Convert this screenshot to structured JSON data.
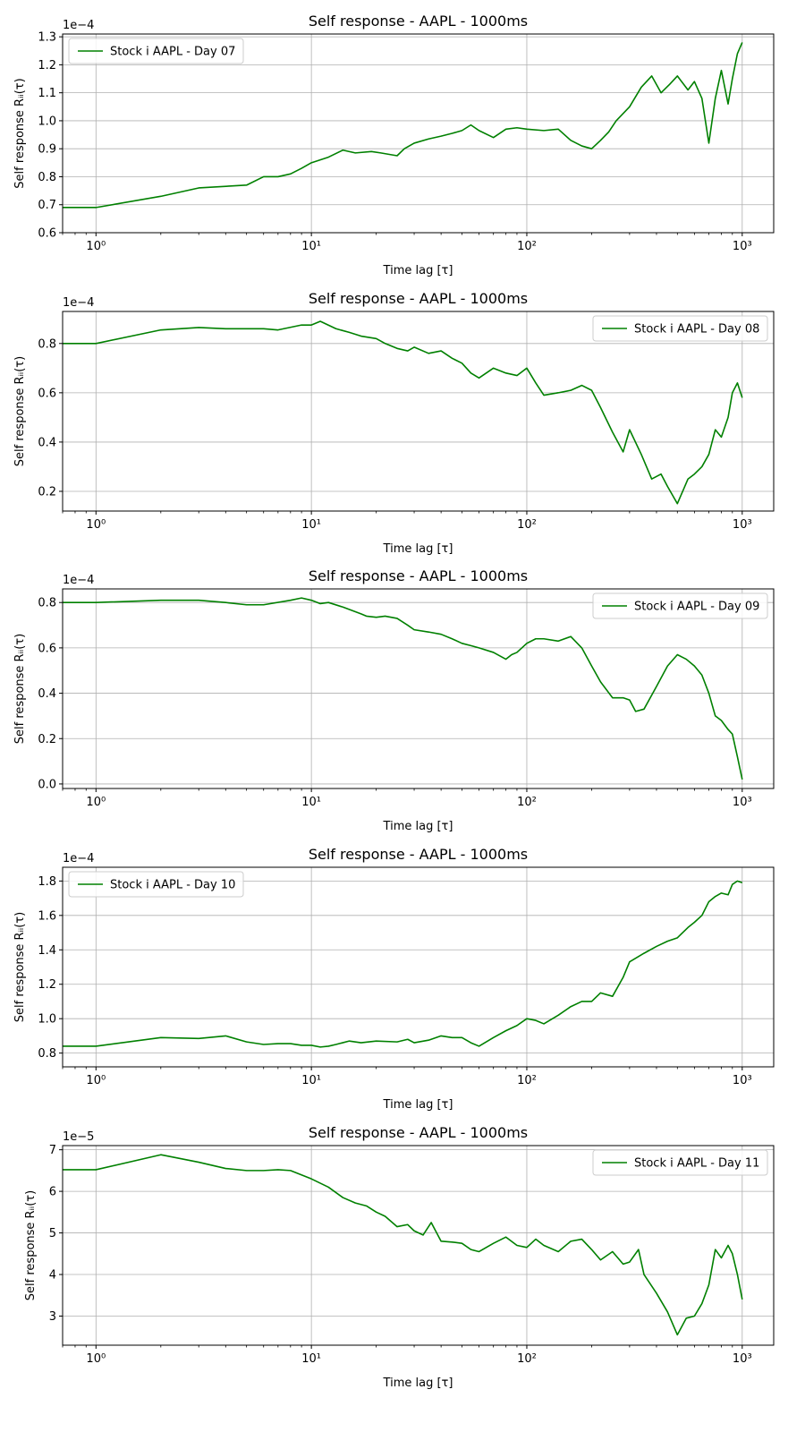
{
  "colors": {
    "series": "#008000",
    "grid": "#b0b0b0",
    "axes": "#000000"
  },
  "chart_data": [
    {
      "type": "line",
      "title": "Self response - AAPL - 1000ms",
      "xlabel": "Time lag [τ]",
      "ylabel": "Self response Rᵢᵢ(τ)",
      "xscale": "log",
      "xlim": [
        0.7,
        1400
      ],
      "xticks": [
        1,
        10,
        100,
        1000
      ],
      "xtick_labels": [
        "10⁰",
        "10¹",
        "10²",
        "10³"
      ],
      "offset_text": "1e−4",
      "ylim": [
        0.6,
        1.31
      ],
      "yticks": [
        0.6,
        0.7,
        0.8,
        0.9,
        1.0,
        1.1,
        1.2,
        1.3
      ],
      "ytick_labels": [
        "0.6",
        "0.7",
        "0.8",
        "0.9",
        "1.0",
        "1.1",
        "1.2",
        "1.3"
      ],
      "grid": true,
      "legend_position": "upper-left",
      "series": [
        {
          "name": "Stock i AAPL - Day 07",
          "x": [
            0.7,
            1,
            2,
            3,
            5,
            6,
            7,
            8,
            9,
            10,
            12,
            14,
            16,
            19,
            21,
            25,
            27,
            30,
            35,
            40,
            45,
            50,
            55,
            60,
            70,
            80,
            90,
            100,
            120,
            140,
            160,
            180,
            200,
            220,
            240,
            260,
            300,
            340,
            380,
            420,
            460,
            500,
            560,
            600,
            650,
            700,
            750,
            800,
            860,
            900,
            950,
            1000
          ],
          "y": [
            0.69,
            0.69,
            0.73,
            0.76,
            0.77,
            0.8,
            0.8,
            0.81,
            0.83,
            0.85,
            0.87,
            0.895,
            0.885,
            0.89,
            0.885,
            0.875,
            0.9,
            0.92,
            0.935,
            0.945,
            0.955,
            0.965,
            0.985,
            0.965,
            0.94,
            0.97,
            0.975,
            0.97,
            0.965,
            0.97,
            0.93,
            0.91,
            0.9,
            0.93,
            0.96,
            1.0,
            1.05,
            1.12,
            1.16,
            1.1,
            1.13,
            1.16,
            1.11,
            1.14,
            1.08,
            0.92,
            1.08,
            1.18,
            1.06,
            1.15,
            1.24,
            1.28
          ]
        }
      ]
    },
    {
      "type": "line",
      "title": "Self response - AAPL - 1000ms",
      "xlabel": "Time lag [τ]",
      "ylabel": "Self response Rᵢᵢ(τ)",
      "xscale": "log",
      "xlim": [
        0.7,
        1400
      ],
      "xticks": [
        1,
        10,
        100,
        1000
      ],
      "xtick_labels": [
        "10⁰",
        "10¹",
        "10²",
        "10³"
      ],
      "offset_text": "1e−4",
      "ylim": [
        0.12,
        0.93
      ],
      "yticks": [
        0.2,
        0.4,
        0.6,
        0.8
      ],
      "ytick_labels": [
        "0.2",
        "0.4",
        "0.6",
        "0.8"
      ],
      "grid": true,
      "legend_position": "upper-right",
      "series": [
        {
          "name": "Stock i AAPL - Day 08",
          "x": [
            0.7,
            1,
            2,
            3,
            4,
            6,
            7,
            9,
            10,
            11,
            13,
            15,
            17,
            20,
            22,
            25,
            28,
            30,
            35,
            40,
            45,
            50,
            55,
            60,
            70,
            80,
            90,
            100,
            110,
            120,
            140,
            160,
            180,
            200,
            220,
            250,
            280,
            300,
            340,
            380,
            420,
            450,
            500,
            560,
            600,
            650,
            700,
            750,
            800,
            860,
            900,
            950,
            1000
          ],
          "y": [
            0.8,
            0.8,
            0.855,
            0.865,
            0.86,
            0.86,
            0.855,
            0.875,
            0.875,
            0.89,
            0.86,
            0.845,
            0.83,
            0.82,
            0.8,
            0.78,
            0.77,
            0.785,
            0.76,
            0.77,
            0.74,
            0.72,
            0.68,
            0.66,
            0.7,
            0.68,
            0.67,
            0.7,
            0.64,
            0.59,
            0.6,
            0.61,
            0.63,
            0.61,
            0.54,
            0.44,
            0.36,
            0.45,
            0.35,
            0.25,
            0.27,
            0.22,
            0.15,
            0.25,
            0.27,
            0.3,
            0.35,
            0.45,
            0.42,
            0.5,
            0.6,
            0.64,
            0.58
          ]
        }
      ]
    },
    {
      "type": "line",
      "title": "Self response - AAPL - 1000ms",
      "xlabel": "Time lag [τ]",
      "ylabel": "Self response Rᵢᵢ(τ)",
      "xscale": "log",
      "xlim": [
        0.7,
        1400
      ],
      "xticks": [
        1,
        10,
        100,
        1000
      ],
      "xtick_labels": [
        "10⁰",
        "10¹",
        "10²",
        "10³"
      ],
      "offset_text": "1e−4",
      "ylim": [
        -0.02,
        0.86
      ],
      "yticks": [
        0.0,
        0.2,
        0.4,
        0.6,
        0.8
      ],
      "ytick_labels": [
        "0.0",
        "0.2",
        "0.4",
        "0.6",
        "0.8"
      ],
      "grid": true,
      "legend_position": "upper-right",
      "series": [
        {
          "name": "Stock i AAPL - Day 09",
          "x": [
            0.7,
            1,
            2,
            3,
            4,
            5,
            6,
            8,
            9,
            10,
            11,
            12,
            14,
            17,
            18,
            20,
            22,
            25,
            28,
            30,
            35,
            40,
            45,
            50,
            55,
            60,
            70,
            80,
            85,
            90,
            100,
            110,
            120,
            140,
            160,
            180,
            200,
            220,
            250,
            280,
            300,
            320,
            350,
            400,
            450,
            500,
            550,
            600,
            650,
            700,
            750,
            800,
            860,
            900,
            950,
            1000
          ],
          "y": [
            0.8,
            0.8,
            0.81,
            0.81,
            0.8,
            0.79,
            0.79,
            0.81,
            0.82,
            0.81,
            0.795,
            0.8,
            0.78,
            0.75,
            0.74,
            0.735,
            0.74,
            0.73,
            0.7,
            0.68,
            0.67,
            0.66,
            0.64,
            0.62,
            0.61,
            0.6,
            0.58,
            0.55,
            0.57,
            0.58,
            0.62,
            0.64,
            0.64,
            0.63,
            0.65,
            0.6,
            0.52,
            0.45,
            0.38,
            0.38,
            0.37,
            0.32,
            0.33,
            0.43,
            0.52,
            0.57,
            0.55,
            0.52,
            0.48,
            0.4,
            0.3,
            0.28,
            0.24,
            0.22,
            0.12,
            0.02
          ]
        }
      ]
    },
    {
      "type": "line",
      "title": "Self response - AAPL - 1000ms",
      "xlabel": "Time lag [τ]",
      "ylabel": "Self response Rᵢᵢ(τ)",
      "xscale": "log",
      "xlim": [
        0.7,
        1400
      ],
      "xticks": [
        1,
        10,
        100,
        1000
      ],
      "xtick_labels": [
        "10⁰",
        "10¹",
        "10²",
        "10³"
      ],
      "offset_text": "1e−4",
      "ylim": [
        0.72,
        1.88
      ],
      "yticks": [
        0.8,
        1.0,
        1.2,
        1.4,
        1.6,
        1.8
      ],
      "ytick_labels": [
        "0.8",
        "1.0",
        "1.2",
        "1.4",
        "1.6",
        "1.8"
      ],
      "grid": true,
      "legend_position": "upper-left",
      "series": [
        {
          "name": "Stock i AAPL - Day 10",
          "x": [
            0.7,
            1,
            2,
            3,
            4,
            5,
            6,
            7,
            8,
            9,
            10,
            11,
            12,
            13,
            15,
            17,
            20,
            25,
            28,
            30,
            35,
            40,
            45,
            50,
            55,
            60,
            70,
            80,
            90,
            100,
            110,
            120,
            140,
            160,
            180,
            200,
            220,
            250,
            280,
            300,
            350,
            400,
            450,
            500,
            560,
            600,
            650,
            700,
            750,
            800,
            860,
            900,
            950,
            1000
          ],
          "y": [
            0.84,
            0.84,
            0.89,
            0.885,
            0.9,
            0.865,
            0.85,
            0.855,
            0.855,
            0.845,
            0.845,
            0.835,
            0.84,
            0.85,
            0.87,
            0.86,
            0.87,
            0.865,
            0.88,
            0.86,
            0.875,
            0.9,
            0.89,
            0.89,
            0.86,
            0.84,
            0.89,
            0.93,
            0.96,
            1.0,
            0.99,
            0.97,
            1.02,
            1.07,
            1.1,
            1.1,
            1.15,
            1.13,
            1.24,
            1.33,
            1.38,
            1.42,
            1.45,
            1.47,
            1.53,
            1.56,
            1.6,
            1.68,
            1.71,
            1.73,
            1.72,
            1.78,
            1.8,
            1.79
          ]
        }
      ]
    },
    {
      "type": "line",
      "title": "Self response - AAPL - 1000ms",
      "xlabel": "Time lag [τ]",
      "ylabel": "Self response Rᵢᵢ(τ)",
      "xscale": "log",
      "xlim": [
        0.7,
        1400
      ],
      "xticks": [
        1,
        10,
        100,
        1000
      ],
      "xtick_labels": [
        "10⁰",
        "10¹",
        "10²",
        "10³"
      ],
      "offset_text": "1e−5",
      "ylim": [
        2.3,
        7.1
      ],
      "yticks": [
        3,
        4,
        5,
        6,
        7
      ],
      "ytick_labels": [
        "3",
        "4",
        "5",
        "6",
        "7"
      ],
      "grid": true,
      "legend_position": "upper-right",
      "series": [
        {
          "name": "Stock i AAPL - Day 11",
          "x": [
            0.7,
            1,
            2,
            3,
            4,
            5,
            6,
            7,
            8,
            10,
            12,
            14,
            16,
            18,
            20,
            22,
            25,
            28,
            30,
            33,
            36,
            40,
            45,
            50,
            55,
            60,
            70,
            80,
            90,
            100,
            110,
            120,
            140,
            160,
            180,
            200,
            220,
            250,
            280,
            300,
            330,
            350,
            400,
            450,
            500,
            550,
            600,
            650,
            700,
            750,
            800,
            860,
            900,
            950,
            1000
          ],
          "y": [
            6.52,
            6.52,
            6.88,
            6.7,
            6.55,
            6.5,
            6.5,
            6.52,
            6.5,
            6.3,
            6.1,
            5.85,
            5.72,
            5.65,
            5.5,
            5.4,
            5.15,
            5.2,
            5.05,
            4.95,
            5.25,
            4.8,
            4.78,
            4.75,
            4.6,
            4.55,
            4.75,
            4.9,
            4.7,
            4.65,
            4.85,
            4.7,
            4.55,
            4.8,
            4.85,
            4.6,
            4.35,
            4.55,
            4.25,
            4.3,
            4.6,
            4.0,
            3.55,
            3.1,
            2.55,
            2.95,
            3.0,
            3.3,
            3.75,
            4.6,
            4.4,
            4.7,
            4.5,
            4.0,
            3.4
          ]
        }
      ]
    }
  ]
}
